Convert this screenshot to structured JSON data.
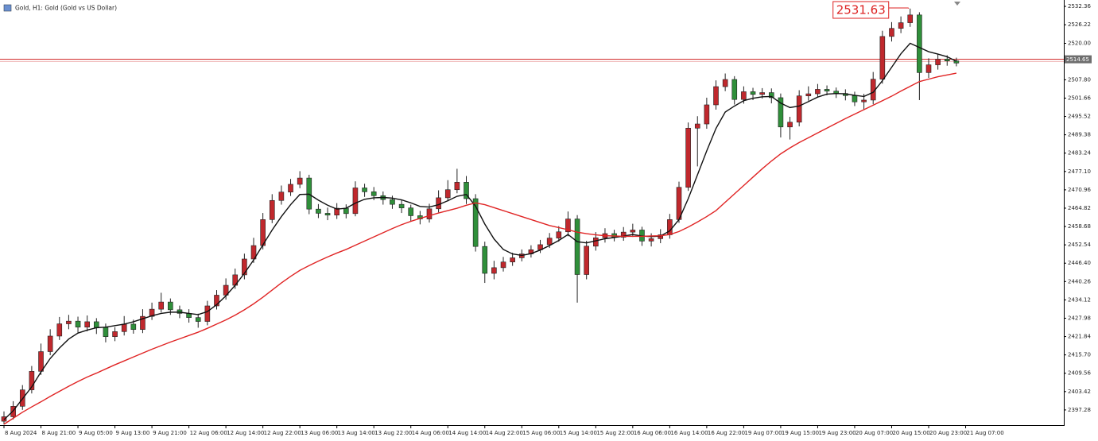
{
  "chart_data": {
    "type": "candlestick",
    "title": "Gold, H1: Gold (Gold vs US Dollar)",
    "up_color": "#c0282d",
    "down_color": "#2f8f3a",
    "current_price": 2514.65,
    "current_price_color": "#d02020",
    "annotation": 2531.63,
    "ylim": [
      2392.2,
      2534.5
    ],
    "yticks": [
      2397.28,
      2403.42,
      2409.56,
      {
        "value": 2415.7,
        "label": "2415.70"
      },
      2421.84,
      2427.98,
      2434.12,
      2440.26,
      {
        "value": 2446.4,
        "label": "2446.40"
      },
      2452.54,
      2458.68,
      2464.82,
      2470.96,
      {
        "value": 2477.1,
        "label": "2477.10"
      },
      2483.24,
      2489.38,
      2495.52,
      2501.66,
      {
        "value": 2507.8,
        "label": "2507.80"
      },
      {
        "value": 2520.0,
        "label": "2520.00"
      },
      2526.22,
      2532.36
    ],
    "categories": [
      "8 Aug 2024",
      null,
      null,
      null,
      "8 Aug 21:00",
      null,
      null,
      null,
      "9 Aug 05:00",
      null,
      null,
      null,
      "9 Aug 13:00",
      null,
      null,
      null,
      "9 Aug 21:00",
      null,
      null,
      null,
      "12 Aug 06:00",
      null,
      null,
      null,
      "12 Aug 14:00",
      null,
      null,
      null,
      "12 Aug 22:00",
      null,
      null,
      null,
      "13 Aug 06:00",
      null,
      null,
      null,
      "13 Aug 14:00",
      null,
      null,
      null,
      "13 Aug 22:00",
      null,
      null,
      null,
      "14 Aug 06:00",
      null,
      null,
      null,
      "14 Aug 14:00",
      null,
      null,
      null,
      "14 Aug 22:00",
      null,
      null,
      null,
      "15 Aug 06:00",
      null,
      null,
      null,
      "15 Aug 14:00",
      null,
      null,
      null,
      "15 Aug 22:00",
      null,
      null,
      null,
      "16 Aug 06:00",
      null,
      null,
      null,
      "16 Aug 14:00",
      null,
      null,
      null,
      "16 Aug 22:00",
      null,
      null,
      null,
      "19 Aug 07:00",
      null,
      null,
      null,
      "19 Aug 15:00",
      null,
      null,
      null,
      "19 Aug 23:00",
      null,
      null,
      null,
      "20 Aug 07:00",
      null,
      null,
      null,
      "20 Aug 15:00",
      null,
      null,
      null,
      "20 Aug 23:00",
      null,
      null,
      null,
      "21 Aug 07:00"
    ],
    "open": [
      2393.5,
      2395.0,
      2398.5,
      2404.0,
      2410.2,
      2416.8,
      2422.0,
      2426.1,
      2427.0,
      2425.0,
      2426.8,
      2424.9,
      2421.8,
      2423.5,
      2426.0,
      2424.2,
      2428.6,
      2431.0,
      2433.4,
      2430.8,
      2429.6,
      2428.2,
      2426.9,
      2432.1,
      2435.7,
      2439.0,
      2442.5,
      2447.8,
      2452.3,
      2461.0,
      2467.4,
      2470.2,
      2472.8,
      2474.9,
      2464.5,
      2463.1,
      2462.5,
      2464.8,
      2463.0,
      2471.6,
      2470.3,
      2469.0,
      2467.7,
      2466.1,
      2464.9,
      2462.3,
      2461.2,
      2464.6,
      2468.3,
      2471.0,
      2473.5,
      2468.0,
      2452.0,
      2443.0,
      2444.9,
      2446.8,
      2448.2,
      2449.5,
      2450.9,
      2452.6,
      2454.8,
      2456.9,
      2461.2,
      2442.6,
      2452.1,
      2454.9,
      2456.3,
      2455.1,
      2456.8,
      2457.5,
      2453.8,
      2454.6,
      2455.9,
      2461.0,
      2471.8,
      2491.6,
      2493.0,
      2499.4,
      2505.5,
      2507.9,
      2501.2,
      2503.8,
      2502.9,
      2503.5,
      2501.8,
      2492.0,
      2493.6,
      2502.4,
      2503.1,
      2504.6,
      2504.0,
      2503.2,
      2502.5,
      2500.4,
      2501.0,
      2508.0,
      2522.3,
      2525.0,
      2526.9,
      2529.5,
      2510.2,
      2512.8,
      2514.7,
      2514.1,
      null
    ],
    "high": [
      2396.8,
      2400.2,
      2405.6,
      2412.0,
      2419.5,
      2424.3,
      2428.4,
      2429.1,
      2428.5,
      2428.9,
      2428.0,
      2426.2,
      2425.0,
      2428.7,
      2427.5,
      2431.0,
      2433.2,
      2436.5,
      2434.6,
      2432.2,
      2431.0,
      2429.5,
      2433.8,
      2437.4,
      2441.3,
      2444.6,
      2449.6,
      2454.9,
      2463.2,
      2469.5,
      2472.4,
      2474.6,
      2477.2,
      2476.0,
      2466.2,
      2465.0,
      2466.5,
      2466.1,
      2473.8,
      2473.0,
      2471.9,
      2470.4,
      2469.0,
      2467.5,
      2466.0,
      2463.9,
      2466.3,
      2470.8,
      2474.2,
      2478.0,
      2475.6,
      2469.5,
      2453.6,
      2447.2,
      2448.5,
      2449.9,
      2451.0,
      2452.4,
      2454.2,
      2456.5,
      2458.8,
      2463.7,
      2462.5,
      2453.9,
      2456.8,
      2458.1,
      2457.6,
      2458.5,
      2459.6,
      2458.6,
      2456.4,
      2457.8,
      2462.9,
      2473.7,
      2493.5,
      2495.6,
      2501.8,
      2507.6,
      2509.9,
      2509.0,
      2505.6,
      2505.1,
      2505.0,
      2504.9,
      2503.2,
      2495.4,
      2504.3,
      2505.6,
      2506.4,
      2505.9,
      2505.2,
      2504.6,
      2503.8,
      2503.1,
      2510.4,
      2524.2,
      2527.1,
      2529.0,
      2531.63,
      2530.4,
      2515.0,
      2516.4,
      2516.0,
      2515.2,
      null
    ],
    "low": [
      2392.4,
      2394.1,
      2397.3,
      2402.8,
      2409.0,
      2415.6,
      2420.7,
      2424.3,
      2423.2,
      2423.6,
      2422.7,
      2419.9,
      2420.3,
      2422.2,
      2422.8,
      2423.0,
      2427.4,
      2429.9,
      2429.1,
      2428.0,
      2426.5,
      2424.8,
      2425.6,
      2430.9,
      2434.2,
      2437.8,
      2441.0,
      2446.5,
      2451.0,
      2459.8,
      2466.0,
      2468.9,
      2471.5,
      2462.8,
      2461.5,
      2460.8,
      2461.2,
      2461.4,
      2462.1,
      2468.6,
      2467.5,
      2466.0,
      2464.6,
      2463.2,
      2460.5,
      2459.4,
      2460.0,
      2463.4,
      2467.1,
      2469.8,
      2466.2,
      2450.3,
      2439.8,
      2441.0,
      2443.6,
      2445.5,
      2447.0,
      2448.3,
      2449.8,
      2451.5,
      2453.6,
      2455.4,
      2433.2,
      2441.0,
      2450.6,
      2453.3,
      2453.7,
      2453.9,
      2455.2,
      2452.2,
      2452.0,
      2453.1,
      2454.6,
      2459.9,
      2470.6,
      2478.8,
      2491.4,
      2497.8,
      2504.0,
      2499.5,
      2499.8,
      2501.0,
      2501.5,
      2499.9,
      2488.5,
      2487.8,
      2492.2,
      2500.8,
      2502.0,
      2502.6,
      2501.7,
      2500.9,
      2499.0,
      2497.8,
      2499.6,
      2506.5,
      2520.6,
      2523.4,
      2525.5,
      2501.0,
      2508.4,
      2511.2,
      2512.5,
      2512.3,
      null
    ],
    "close": [
      2395.0,
      2398.5,
      2404.0,
      2410.2,
      2416.8,
      2422.0,
      2426.1,
      2427.0,
      2425.0,
      2426.8,
      2424.9,
      2421.8,
      2423.5,
      2426.0,
      2424.2,
      2428.6,
      2431.0,
      2433.4,
      2430.8,
      2429.6,
      2428.2,
      2426.9,
      2432.1,
      2435.7,
      2439.0,
      2442.5,
      2447.8,
      2452.3,
      2461.0,
      2467.4,
      2470.2,
      2472.8,
      2474.9,
      2464.5,
      2463.1,
      2462.5,
      2464.8,
      2463.0,
      2471.6,
      2470.3,
      2469.0,
      2467.7,
      2466.1,
      2464.9,
      2462.3,
      2461.2,
      2464.6,
      2468.3,
      2471.0,
      2473.5,
      2468.0,
      2452.0,
      2443.0,
      2444.9,
      2446.8,
      2448.2,
      2449.5,
      2450.9,
      2452.6,
      2454.8,
      2456.9,
      2461.2,
      2442.6,
      2452.1,
      2454.9,
      2456.3,
      2455.1,
      2456.8,
      2457.5,
      2453.8,
      2454.6,
      2455.9,
      2461.0,
      2471.8,
      2491.6,
      2493.0,
      2499.4,
      2505.5,
      2507.9,
      2501.2,
      2503.8,
      2502.9,
      2503.5,
      2501.8,
      2492.0,
      2493.6,
      2502.4,
      2503.1,
      2504.6,
      2504.0,
      2503.2,
      2502.5,
      2500.4,
      2501.0,
      2508.0,
      2522.3,
      2525.0,
      2526.9,
      2529.5,
      2510.2,
      2512.8,
      2514.7,
      2514.1,
      2513.4,
      null
    ],
    "overlays": [
      {
        "color": "#111111",
        "values": [
          2394,
          2397,
          2401,
          2405,
          2410,
          2414.5,
          2418,
          2421,
          2423,
          2424,
          2424.8,
          2425,
          2425.5,
          2426,
          2426.8,
          2427.8,
          2428.8,
          2429.6,
          2430,
          2430,
          2429.6,
          2429.2,
          2430.2,
          2432.5,
          2435.5,
          2439,
          2443,
          2447.5,
          2452.5,
          2457.5,
          2462,
          2466,
          2469.4,
          2469.5,
          2467.5,
          2465.8,
          2464.5,
          2464.8,
          2466.5,
          2467.8,
          2468.3,
          2468.4,
          2468.2,
          2467.6,
          2466.6,
          2465.4,
          2465.2,
          2466,
          2467.3,
          2468.8,
          2469.4,
          2465.5,
          2459.5,
          2454.5,
          2451,
          2449.5,
          2449,
          2449.6,
          2450.8,
          2452.3,
          2454,
          2456,
          2453.6,
          2453.2,
          2453.9,
          2454.6,
          2455,
          2455.5,
          2456,
          2455.5,
          2455.3,
          2455.5,
          2457.2,
          2461,
          2468,
          2476,
          2484,
          2491.5,
          2497,
          2499,
          2500.8,
          2501.6,
          2502.1,
          2502.2,
          2500,
          2498.5,
          2499,
          2500.5,
          2502,
          2503,
          2503.2,
          2503.1,
          2502.6,
          2502.2,
          2503.6,
          2507.5,
          2512,
          2516.5,
          2520,
          2518.6,
          2517.2,
          2516.4,
          2515.5,
          2514,
          null
        ]
      },
      {
        "color": "#e02424",
        "values": [
          2392.5,
          2394.5,
          2396.5,
          2398.3,
          2400,
          2401.8,
          2403.5,
          2405.2,
          2406.8,
          2408.3,
          2409.6,
          2411,
          2412.4,
          2413.7,
          2415,
          2416.3,
          2417.6,
          2418.8,
          2420,
          2421.1,
          2422.2,
          2423.3,
          2424.6,
          2426,
          2427.4,
          2429,
          2430.8,
          2432.8,
          2435,
          2437.4,
          2439.8,
          2442,
          2444,
          2445.6,
          2447.1,
          2448.5,
          2449.8,
          2451,
          2452.4,
          2453.8,
          2455.2,
          2456.6,
          2458,
          2459.3,
          2460.4,
          2461.4,
          2462.3,
          2463.2,
          2464,
          2464.8,
          2465.8,
          2466.6,
          2466,
          2465,
          2464,
          2463,
          2462,
          2461,
          2460,
          2459,
          2458.3,
          2457.6,
          2456.8,
          2456.3,
          2455.9,
          2455.6,
          2455.5,
          2455.4,
          2455.4,
          2455.4,
          2455.5,
          2455.6,
          2456,
          2457,
          2458.5,
          2460.2,
          2462,
          2464,
          2466.8,
          2469.6,
          2472.4,
          2475.2,
          2478,
          2480.6,
          2483,
          2485,
          2486.8,
          2488.4,
          2490,
          2491.6,
          2493.2,
          2494.8,
          2496.3,
          2497.8,
          2499.3,
          2500.8,
          2502.3,
          2504,
          2505.6,
          2507.2,
          2508,
          2508.8,
          2509.4,
          2510,
          null
        ]
      }
    ]
  }
}
